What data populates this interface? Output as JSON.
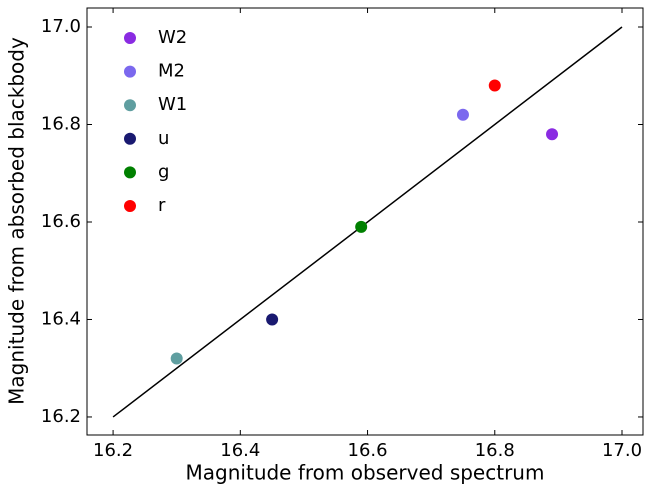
{
  "chart_data": {
    "type": "scatter",
    "xlabel": "Magnitude from observed spectrum",
    "ylabel": "Magnitude from absorbed blackbody",
    "xlim": [
      16.159,
      17.033
    ],
    "ylim": [
      16.163,
      17.039
    ],
    "xticks": [
      16.2,
      16.4,
      16.6,
      16.8,
      {
        "value": 17,
        "label": "17.0"
      }
    ],
    "yticks": [
      16.2,
      16.4,
      16.6,
      16.8,
      {
        "value": 17,
        "label": "17.0"
      }
    ],
    "legend": "upper left",
    "reference_line": {
      "color": "#000000",
      "x": [
        16.2,
        17.0
      ],
      "y": [
        16.2,
        17.0
      ]
    },
    "series": [
      {
        "name": "W2",
        "color": "#8a2be2",
        "x": [
          16.89
        ],
        "y": [
          16.78
        ]
      },
      {
        "name": "M2",
        "color": "#7b68ee",
        "x": [
          16.75
        ],
        "y": [
          16.82
        ]
      },
      {
        "name": "W1",
        "color": "#5f9ea0",
        "x": [
          16.3
        ],
        "y": [
          16.32
        ]
      },
      {
        "name": "u",
        "color": "#191970",
        "x": [
          16.45
        ],
        "y": [
          16.4
        ]
      },
      {
        "name": "g",
        "color": "#008000",
        "x": [
          16.59
        ],
        "y": [
          16.59
        ]
      },
      {
        "name": "r",
        "color": "#ff0000",
        "x": [
          16.8
        ],
        "y": [
          16.88
        ]
      }
    ]
  }
}
